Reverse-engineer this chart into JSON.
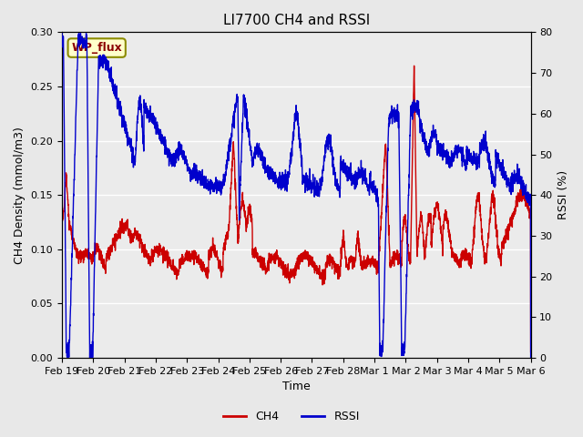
{
  "title": "LI7700 CH4 and RSSI",
  "xlabel": "Time",
  "ylabel_left": "CH4 Density (mmol/m3)",
  "ylabel_right": "RSSI (%)",
  "ylim_left": [
    0.0,
    0.3
  ],
  "ylim_right": [
    0,
    80
  ],
  "yticks_left": [
    0.0,
    0.05,
    0.1,
    0.15,
    0.2,
    0.25,
    0.3
  ],
  "yticks_right": [
    0,
    10,
    20,
    30,
    40,
    50,
    60,
    70,
    80
  ],
  "xtick_labels": [
    "Feb 19",
    "Feb 20",
    "Feb 21",
    "Feb 22",
    "Feb 23",
    "Feb 24",
    "Feb 25",
    "Feb 26",
    "Feb 27",
    "Feb 28",
    "Mar 1",
    "Mar 2",
    "Mar 3",
    "Mar 4",
    "Mar 5",
    "Mar 6"
  ],
  "ch4_color": "#cc0000",
  "rssi_color": "#0000cc",
  "legend_ch4": "CH4",
  "legend_rssi": "RSSI",
  "wp_flux_label": "WP_flux",
  "fig_facecolor": "#e8e8e8",
  "plot_facecolor": "#ebebeb",
  "title_fontsize": 11,
  "axis_label_fontsize": 9,
  "tick_fontsize": 8,
  "legend_fontsize": 9,
  "linewidth": 1.0
}
